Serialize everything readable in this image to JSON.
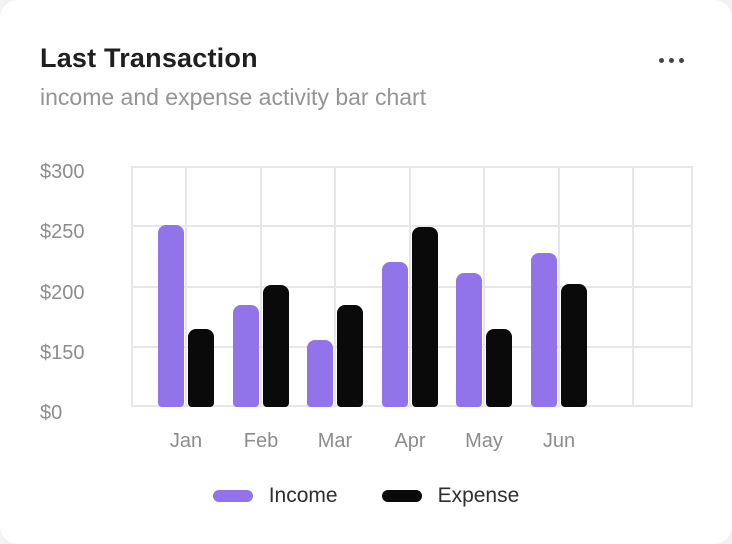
{
  "header": {
    "title": "Last Transaction",
    "subtitle": "income and expense activity bar chart"
  },
  "menu": {
    "icon": "ellipsis-menu-icon"
  },
  "chart_data": {
    "type": "bar",
    "categories": [
      "Jan",
      "Feb",
      "Mar",
      "Apr",
      "May",
      "Jun"
    ],
    "series": [
      {
        "name": "Income",
        "color": "#9174e9",
        "values": [
          251,
          185,
          156,
          220,
          211,
          228
        ]
      },
      {
        "name": "Expense",
        "color": "#0a0a0a",
        "values": [
          165,
          201,
          185,
          249,
          165,
          202
        ]
      }
    ],
    "y_ticks": [
      0,
      150,
      200,
      250,
      300
    ],
    "y_tick_labels": [
      "$0",
      "$150",
      "$200",
      "$250",
      "$300"
    ],
    "axis_scale": "y ticks evenly spaced (non-linear between $0 and $150)",
    "grid": true,
    "legend_position": "bottom"
  },
  "colors": {
    "accent_purple": "#9174e9",
    "bar_black": "#0a0a0a",
    "grid_line": "#e7e7eb",
    "title_text": "#1f1f22",
    "subtitle_text": "#949494",
    "axis_text": "#8c8c8c",
    "legend_text": "#2e2e30"
  }
}
